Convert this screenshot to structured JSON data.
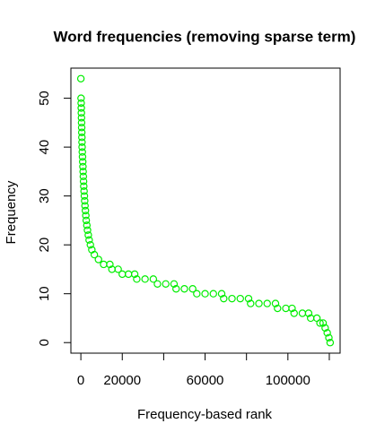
{
  "chart_data": {
    "type": "scatter",
    "title": "Word frequencies (removing sparse term)",
    "xlabel": "Frequency-based rank",
    "ylabel": "Frequency",
    "x": [
      0,
      100,
      150,
      200,
      250,
      300,
      350,
      400,
      450,
      500,
      550,
      600,
      700,
      800,
      900,
      1000,
      1100,
      1200,
      1300,
      1400,
      1550,
      1700,
      1850,
      2000,
      2200,
      2400,
      2600,
      2900,
      3200,
      3600,
      4000,
      4600,
      5300,
      6500,
      8500,
      11000,
      14000,
      15000,
      18000,
      20000,
      23000,
      26000,
      27000,
      31000,
      35000,
      37000,
      41000,
      45000,
      46000,
      50000,
      54000,
      56000,
      60000,
      64000,
      68000,
      69000,
      73000,
      77000,
      81000,
      82000,
      86000,
      90000,
      94000,
      95000,
      99000,
      102000,
      103000,
      107000,
      110000,
      111000,
      114000,
      115500,
      117000,
      118000,
      119000,
      119800,
      120400
    ],
    "series": [
      {
        "color": "#00ee00",
        "values": [
          54,
          50,
          49,
          48,
          47,
          46,
          45,
          44,
          43,
          42,
          41,
          40,
          39,
          38,
          37,
          36,
          35,
          34,
          33,
          32,
          31,
          30,
          29,
          28,
          27,
          26,
          25,
          24,
          23,
          22,
          21,
          20,
          19,
          18,
          17,
          16,
          16,
          15,
          15,
          14,
          14,
          14,
          13,
          13,
          13,
          12,
          12,
          12,
          11,
          11,
          11,
          10,
          10,
          10,
          10,
          9,
          9,
          9,
          9,
          8,
          8,
          8,
          8,
          7,
          7,
          7,
          6,
          6,
          6,
          5,
          5,
          4,
          4,
          3,
          2,
          1,
          0
        ]
      }
    ],
    "xlim": [
      -4815,
      125216
    ],
    "ylim": [
      -2.16,
      56.16
    ],
    "xticks": [
      0,
      20000,
      60000,
      100000
    ],
    "xminor_ticks": [
      40000,
      80000,
      120000
    ],
    "yticks": [
      0,
      10,
      20,
      30,
      40,
      50
    ]
  }
}
